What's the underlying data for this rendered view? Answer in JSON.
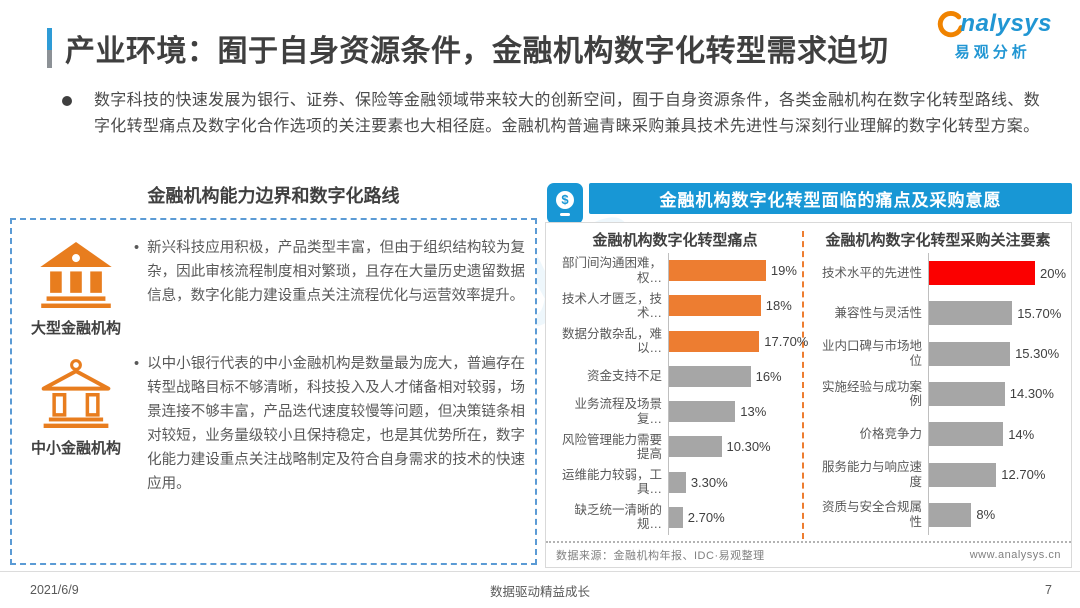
{
  "page": {
    "title": "产业环境：囿于自身资源条件，金融机构数字化转型需求迫切",
    "footer": {
      "date": "2021/6/9",
      "slogan": "数据驱动精益成长",
      "page_number": "7"
    }
  },
  "logo": {
    "en": "nalysys",
    "cn": "易观分析",
    "swirl_color": "#f08300",
    "text_color": "#2196d3"
  },
  "watermark": {
    "en": "analysys",
    "cn": "易观分析"
  },
  "intro": {
    "bullet_icon": "dot",
    "text": "数字科技的快速发展为银行、证券、保险等金融领域带来较大的创新空间，囿于自身资源条件，各类金融机构在数字化转型路线、数字化转型痛点及数字化合作选项的关注要素也大相径庭。金融机构普遍青睐采购兼具技术先进性与深刻行业理解的数字化转型方案。"
  },
  "left_panel": {
    "title": "金融机构能力边界和数字化路线",
    "items": [
      {
        "icon": "large-bank-icon",
        "label": "大型金融机构",
        "bullet": "•",
        "text": "新兴科技应用积极，产品类型丰富，但由于组织结构较为复杂，因此审核流程制度相对繁琐，且存在大量历史遗留数据信息，数字化能力建设重点关注流程优化与运营效率提升。"
      },
      {
        "icon": "small-bank-icon",
        "label": "中小金融机构",
        "bullet": "•",
        "text": "以中小银行代表的中小金融机构是数量最为庞大，普遍存在转型战略目标不够清晰，科技投入及人才储备相对较弱，场景连接不够丰富，产品迭代速度较慢等问题，但决策链条相对较短，业务量级较小且保持稳定，也是其优势所在，数字化能力建设重点关注战略制定及符合自身需求的技术的快速应用。"
      }
    ]
  },
  "right_panel": {
    "header": "金融机构数字化转型面临的痛点及采购意愿",
    "header_icon_glyph": "$",
    "source_note": "数据来源：金融机构年报、IDC·易观整理",
    "website": "www.analysys.cn",
    "header_color": "#1897d5"
  },
  "colors": {
    "orange": "#ed7d31",
    "red": "#fb0000",
    "gray_bar": "#a6a6a6",
    "dashed_border_blue": "#5b9bd5",
    "divider_orange": "#ed7d31"
  },
  "chart_data": [
    {
      "type": "bar",
      "orientation": "horizontal",
      "title": "金融机构数字化转型痛点",
      "categories": [
        "部门间沟通困难，权…",
        "技术人才匮乏，技术…",
        "数据分散杂乱，难以…",
        "资金支持不足",
        "业务流程及场景复…",
        "风险管理能力需要提高",
        "运维能力较弱，工具…",
        "缺乏统一清晰的规…"
      ],
      "values": [
        19,
        18,
        17.7,
        16,
        13,
        10.3,
        3.3,
        2.7
      ],
      "display_values": [
        "19%",
        "18%",
        "17.70%",
        "16%",
        "13%",
        "10.30%",
        "3.30%",
        "2.70%"
      ],
      "bar_colors": [
        "#ed7d31",
        "#ed7d31",
        "#ed7d31",
        "#a6a6a6",
        "#a6a6a6",
        "#a6a6a6",
        "#a6a6a6",
        "#a6a6a6"
      ],
      "xlim": [
        0,
        20
      ],
      "grid": false,
      "legend": false,
      "value_labels": "outside-end"
    },
    {
      "type": "bar",
      "orientation": "horizontal",
      "title": "金融机构数字化转型采购关注要素",
      "categories": [
        "技术水平的先进性",
        "兼容性与灵活性",
        "业内口碑与市场地位",
        "实施经验与成功案例",
        "价格竞争力",
        "服务能力与响应速度",
        "资质与安全合规属性"
      ],
      "values": [
        20,
        15.7,
        15.3,
        14.3,
        14,
        12.7,
        8
      ],
      "display_values": [
        "20%",
        "15.70%",
        "15.30%",
        "14.30%",
        "14%",
        "12.70%",
        "8%"
      ],
      "bar_colors": [
        "#fb0000",
        "#a6a6a6",
        "#a6a6a6",
        "#a6a6a6",
        "#a6a6a6",
        "#a6a6a6",
        "#a6a6a6"
      ],
      "xlim": [
        0,
        20
      ],
      "grid": false,
      "legend": false,
      "value_labels": "outside-end"
    }
  ]
}
